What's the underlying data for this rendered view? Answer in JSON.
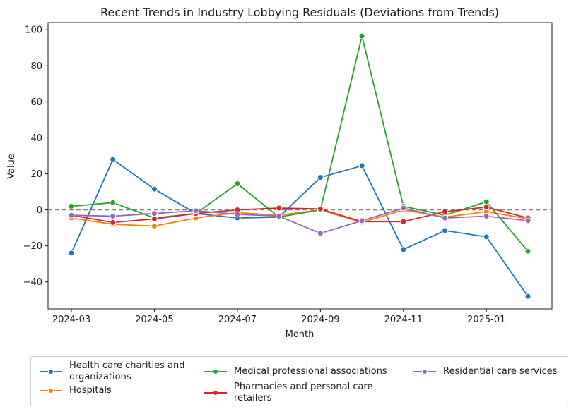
{
  "chart_data": {
    "type": "line",
    "title": "Recent Trends in Industry Lobbying Residuals (Deviations from Trends)",
    "xlabel": "Month",
    "ylabel": "Value",
    "x": [
      "2024-03",
      "2024-04",
      "2024-05",
      "2024-06",
      "2024-07",
      "2024-08",
      "2024-09",
      "2024-10",
      "2024-11",
      "2024-12",
      "2025-01",
      "2025-02"
    ],
    "x_ticks": [
      "2024-03",
      "2024-05",
      "2024-07",
      "2024-09",
      "2024-11",
      "2025-01"
    ],
    "y_ticks": [
      100,
      80,
      60,
      40,
      20,
      0,
      -20,
      -40
    ],
    "y_tick_labels": [
      "100",
      "80",
      "60",
      "40",
      "20",
      "0",
      "−20",
      "−40"
    ],
    "ylim": [
      -55,
      104
    ],
    "reference_line": {
      "y": 0,
      "style": "dashed",
      "color": "#808080"
    },
    "grid": false,
    "legend_position": "below",
    "series": [
      {
        "name": "Health care charities and organizations",
        "color": "#1f77b4",
        "values": [
          -24,
          28,
          11.5,
          -2,
          -4.5,
          -4,
          18,
          24.5,
          -22,
          -11.5,
          -15,
          -48
        ]
      },
      {
        "name": "Hospitals",
        "color": "#ff7f0e",
        "values": [
          -4.5,
          -8,
          -9,
          -4.5,
          -1.5,
          -3,
          0,
          -7,
          0,
          -4,
          -1,
          -5
        ]
      },
      {
        "name": "Medical professional associations",
        "color": "#2ca02c",
        "values": [
          2,
          4,
          -4.5,
          -2,
          14.5,
          -4,
          0,
          96.5,
          2,
          -3,
          4.5,
          -23
        ]
      },
      {
        "name": "Pharmacies and personal care retailers",
        "color": "#d62728",
        "values": [
          -3,
          -7,
          -5,
          -2,
          0,
          1,
          0.5,
          -6.5,
          -6.5,
          -1,
          1.5,
          -4.5
        ]
      },
      {
        "name": "Residential care services",
        "color": "#9467bd",
        "values": [
          -3,
          -3.5,
          -2,
          -0.5,
          -2.5,
          -3.5,
          -13,
          -6,
          1,
          -4.5,
          -3.5,
          -6
        ]
      }
    ]
  }
}
